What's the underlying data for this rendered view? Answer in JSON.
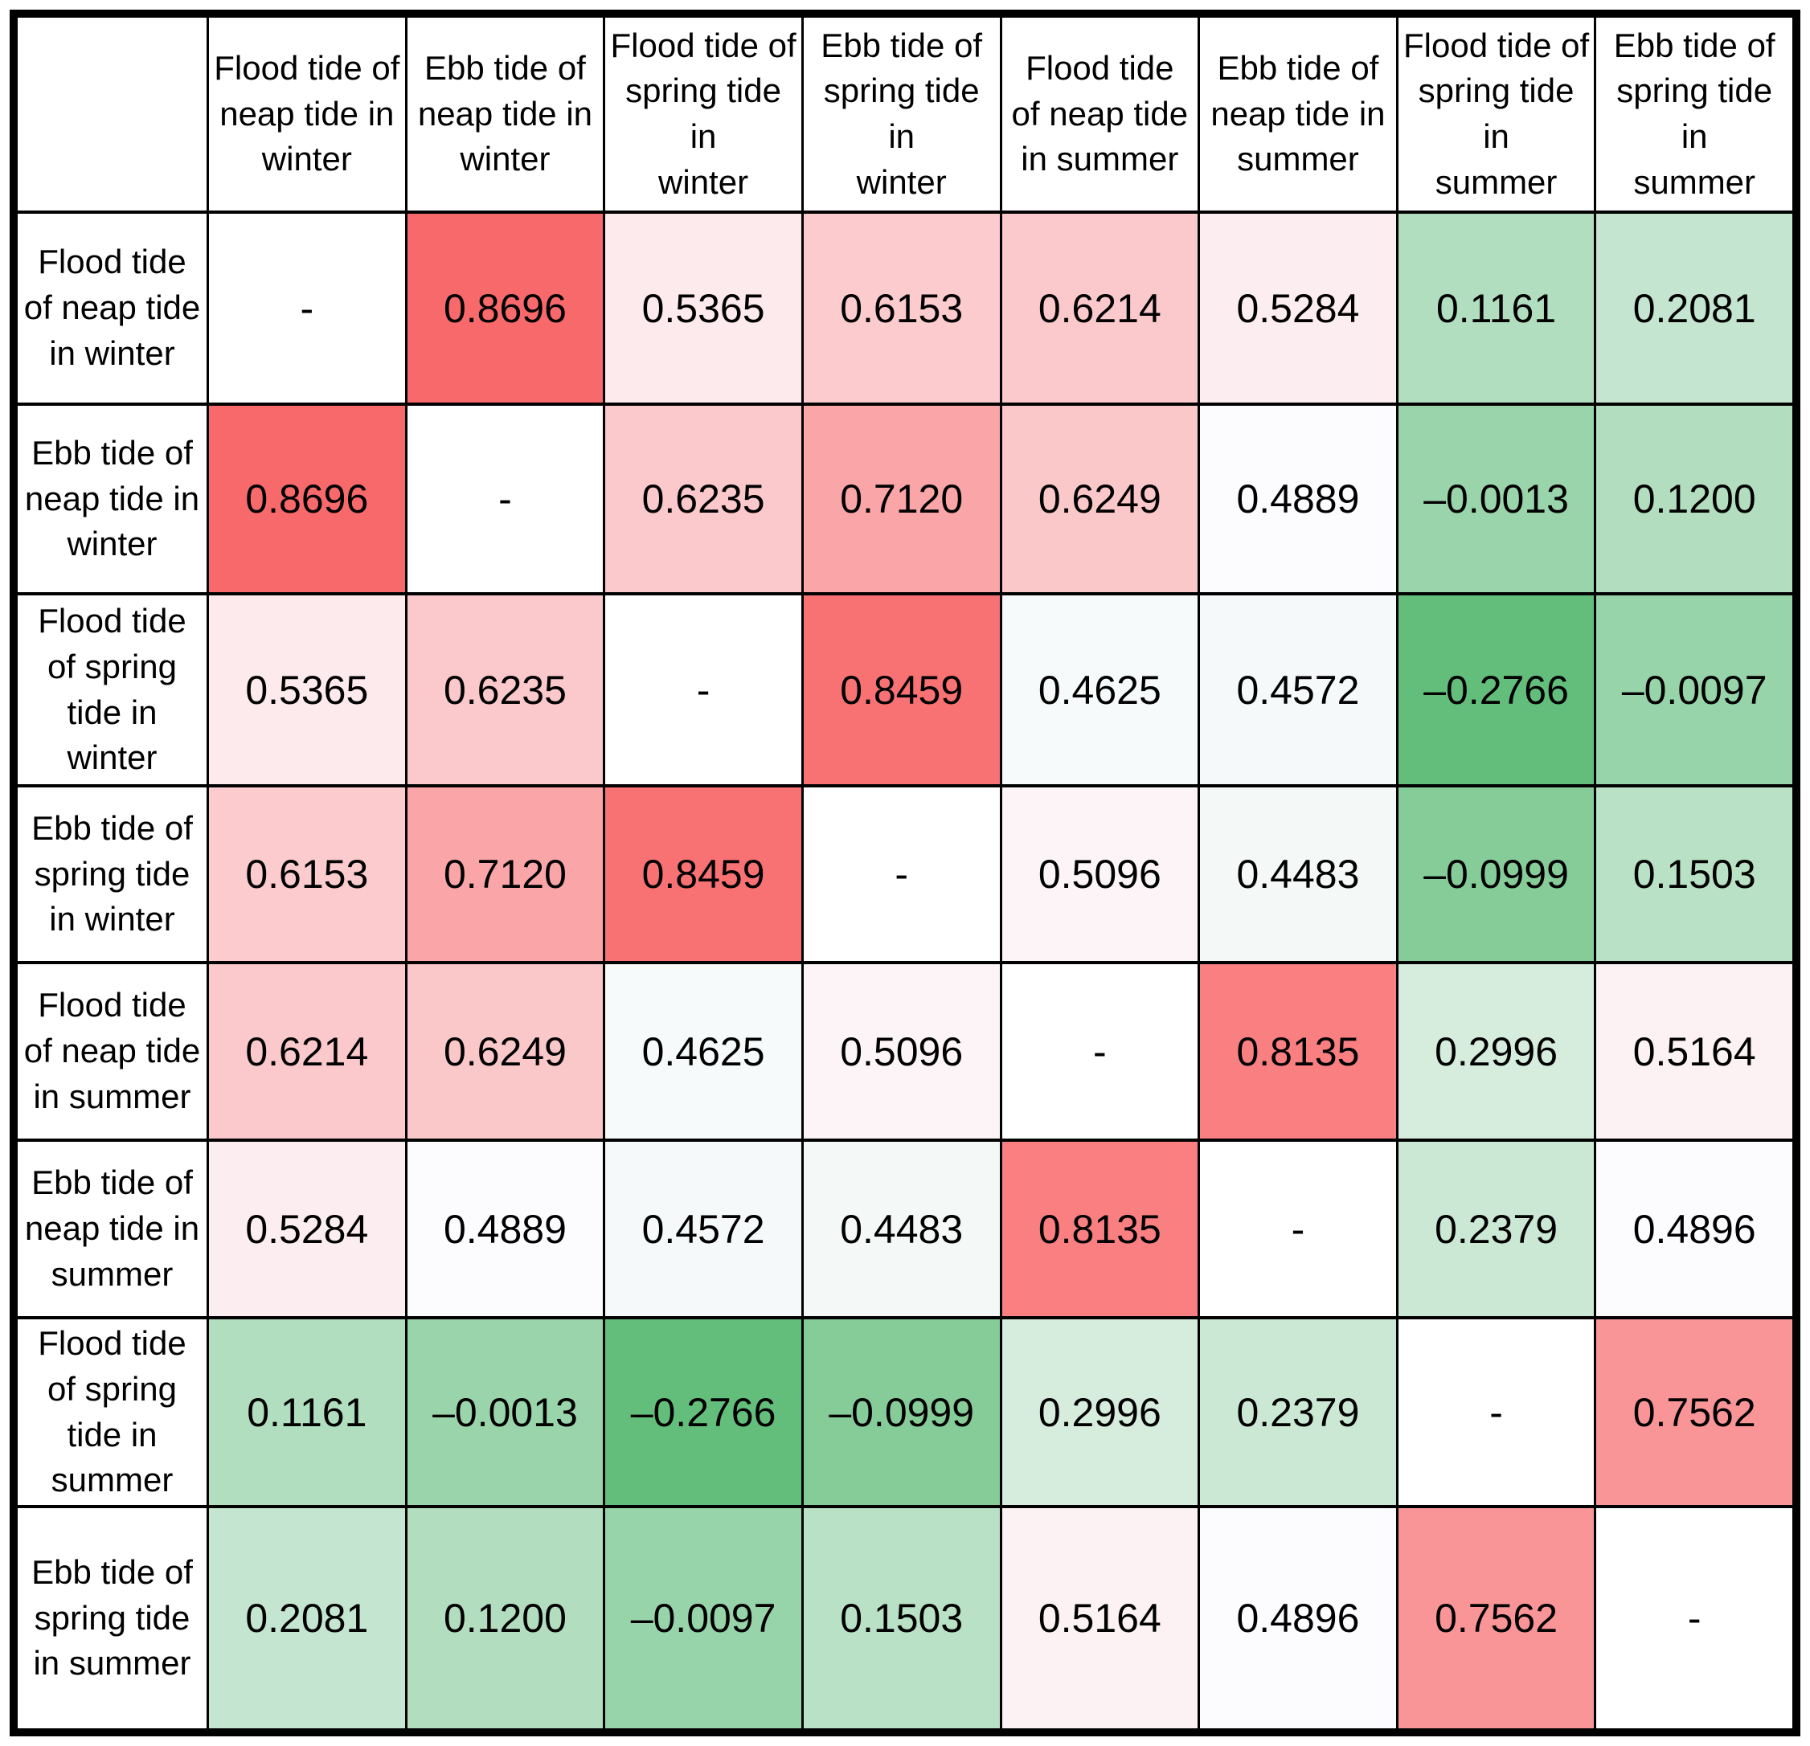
{
  "table": {
    "corner": "",
    "col_headers": [
      "Flood tide of\nneap tide in\nwinter",
      "Ebb tide of\nneap tide in\nwinter",
      "Flood tide of\nspring tide in\nwinter",
      "Ebb tide of\nspring tide in\nwinter",
      "Flood tide\nof neap tide\nin summer",
      "Ebb tide of\nneap tide in\nsummer",
      "Flood tide of\nspring tide in\nsummer",
      "Ebb tide of\nspring tide in\nsummer"
    ],
    "row_headers": [
      "Flood tide\nof neap tide\nin winter",
      "Ebb tide of\nneap tide in\nwinter",
      "Flood tide\nof spring\ntide in\nwinter",
      "Ebb tide of\nspring tide\nin winter",
      "Flood tide\nof neap tide\nin summer",
      "Ebb tide of\nneap tide in\nsummer",
      "Flood tide\nof spring\ntide in\nsummer",
      "Ebb tide of\nspring tide\nin summer"
    ],
    "cells": [
      [
        "-",
        "0.8696",
        "0.5365",
        "0.6153",
        "0.6214",
        "0.5284",
        "0.1161",
        "0.2081"
      ],
      [
        "0.8696",
        "-",
        "0.6235",
        "0.7120",
        "0.6249",
        "0.4889",
        "–0.0013",
        "0.1200"
      ],
      [
        "0.5365",
        "0.6235",
        "-",
        "0.8459",
        "0.4625",
        "0.4572",
        "–0.2766",
        "–0.0097"
      ],
      [
        "0.6153",
        "0.7120",
        "0.8459",
        "-",
        "0.5096",
        "0.4483",
        "–0.0999",
        "0.1503"
      ],
      [
        "0.6214",
        "0.6249",
        "0.4625",
        "0.5096",
        "-",
        "0.8135",
        "0.2996",
        "0.5164"
      ],
      [
        "0.5284",
        "0.4889",
        "0.4572",
        "0.4483",
        "0.8135",
        "-",
        "0.2379",
        "0.4896"
      ],
      [
        "0.1161",
        "–0.0013",
        "–0.2766",
        "–0.0999",
        "0.2996",
        "0.2379",
        "-",
        "0.7562"
      ],
      [
        "0.2081",
        "0.1200",
        "–0.0097",
        "0.1503",
        "0.5164",
        "0.4896",
        "0.7562",
        "-"
      ]
    ],
    "diagonal_placeholder": "-"
  },
  "chart_data": {
    "type": "heatmap",
    "categories": [
      "Flood tide of neap tide in winter",
      "Ebb tide of neap tide in winter",
      "Flood tide of spring tide in winter",
      "Ebb tide of spring tide in winter",
      "Flood tide of neap tide in summer",
      "Ebb tide of neap tide in summer",
      "Flood tide of spring tide in summer",
      "Ebb tide of spring tide in summer"
    ],
    "matrix": [
      [
        null,
        0.8696,
        0.5365,
        0.6153,
        0.6214,
        0.5284,
        0.1161,
        0.2081
      ],
      [
        0.8696,
        null,
        0.6235,
        0.712,
        0.6249,
        0.4889,
        -0.0013,
        0.12
      ],
      [
        0.5365,
        0.6235,
        null,
        0.8459,
        0.4625,
        0.4572,
        -0.2766,
        -0.0097
      ],
      [
        0.6153,
        0.712,
        0.8459,
        null,
        0.5096,
        0.4483,
        -0.0999,
        0.1503
      ],
      [
        0.6214,
        0.6249,
        0.4625,
        0.5096,
        null,
        0.8135,
        0.2996,
        0.5164
      ],
      [
        0.5284,
        0.4889,
        0.4572,
        0.4483,
        0.8135,
        null,
        0.2379,
        0.4896
      ],
      [
        0.1161,
        -0.0013,
        -0.2766,
        -0.0999,
        0.2996,
        0.2379,
        null,
        0.7562
      ],
      [
        0.2081,
        0.12,
        -0.0097,
        0.1503,
        0.5164,
        0.4896,
        0.7562,
        null
      ]
    ],
    "colormap": {
      "high": "#F8696B",
      "mid": "#FCFCFF",
      "low": "#63BE7B"
    },
    "scale": {
      "min": -0.2766,
      "midpoint": 0.48925,
      "max": 0.8696
    },
    "diagonal_color": "#FFFFFF",
    "text_color": "#000000",
    "border_color": "#000000",
    "grid": true,
    "legend": "none"
  }
}
